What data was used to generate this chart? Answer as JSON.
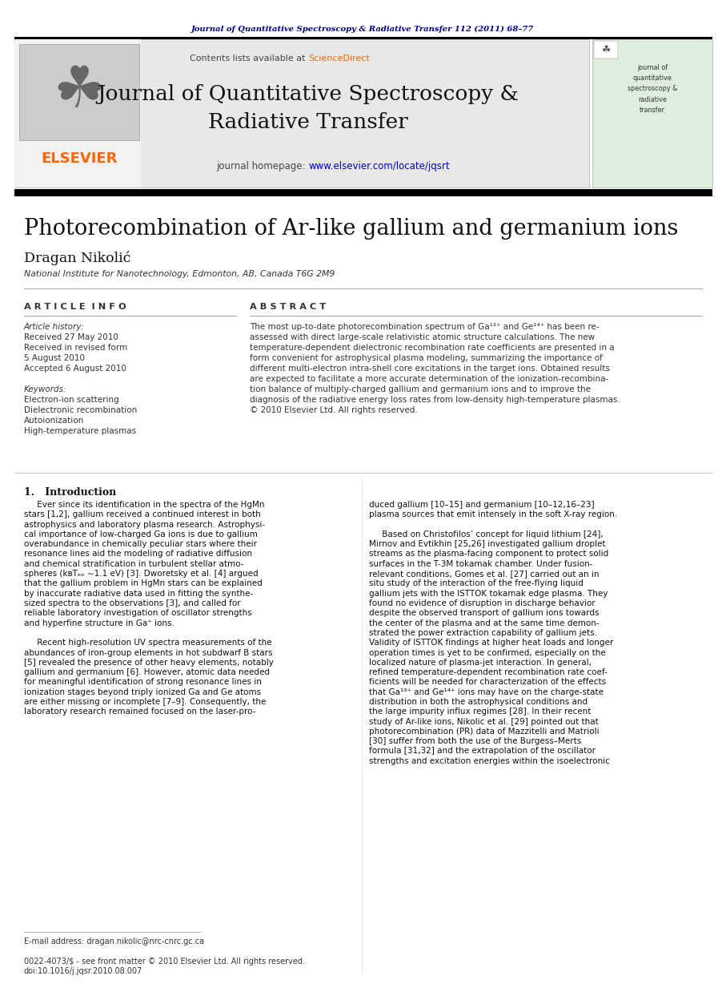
{
  "page_bg": "#ffffff",
  "top_journal_text": "Journal of Quantitative Spectroscopy & Radiative Transfer 112 (2011) 68–77",
  "top_journal_color": "#00008B",
  "header_bg": "#e8e8e8",
  "header_contents_text": "Contents lists available at ",
  "header_sciencedirect": "ScienceDirect",
  "header_sciencedirect_color": "#FF6600",
  "header_journal_title": "Journal of Quantitative Spectroscopy &\nRadiative Transfer",
  "header_homepage_prefix": "journal homepage: ",
  "header_homepage_url": "www.elsevier.com/locate/jqsrt",
  "header_homepage_url_color": "#0000CC",
  "elsevier_text": "ELSEVIER",
  "elsevier_color": "#FF6600",
  "divider_color": "#000000",
  "article_title": "Photorecombination of Ar-like gallium and germanium ions",
  "author_name": "Dragan Nikolić",
  "affiliation": "National Institute for Nanotechnology, Edmonton, AB, Canada T6G 2M9",
  "article_info_header": "A R T I C L E  I N F O",
  "abstract_header": "A B S T R A C T",
  "article_history_label": "Article history:",
  "received_date": "Received 27 May 2010",
  "revised_label": "Received in revised form",
  "revised_date": "5 August 2010",
  "accepted_label": "Accepted 6 August 2010",
  "keywords_label": "Keywords:",
  "keyword1": "Electron-ion scattering",
  "keyword2": "Dielectronic recombination",
  "keyword3": "Autoionization",
  "keyword4": "High-temperature plasmas",
  "abstract_lines": [
    "The most up-to-date photorecombination spectrum of Ga¹³⁺ and Ge¹⁴⁺ has been re-",
    "assessed with direct large-scale relativistic atomic structure calculations. The new",
    "temperature-dependent dielectronic recombination rate coefficients are presented in a",
    "form convenient for astrophysical plasma modeling, summarizing the importance of",
    "different multi-electron intra-shell core excitations in the target ions. Obtained results",
    "are expected to facilitate a more accurate determination of the ionization-recombina-",
    "tion balance of multiply-charged gallium and germanium ions and to improve the",
    "diagnosis of the radiative energy loss rates from low-density high-temperature plasmas.",
    "© 2010 Elsevier Ltd. All rights reserved."
  ],
  "intro_header": "1.   Introduction",
  "intro_col1_lines": [
    "     Ever since its identification in the spectra of the HgMn",
    "stars [1,2], gallium received a continued interest in both",
    "astrophysics and laboratory plasma research. Astrophysi-",
    "cal importance of low-charged Ga ions is due to gallium",
    "overabundance in chemically peculiar stars where their",
    "resonance lines aid the modeling of radiative diffusion",
    "and chemical stratification in turbulent stellar atmo-",
    "spheres (kʙTₑₑ ∼1.1 eV) [3]. Dworetsky et al. [4] argued",
    "that the gallium problem in HgMn stars can be explained",
    "by inaccurate radiative data used in fitting the synthe-",
    "sized spectra to the observations [3], and called for",
    "reliable laboratory investigation of oscillator strengths",
    "and hyperfine structure in Ga⁺ ions.",
    "",
    "     Recent high-resolution UV spectra measurements of the",
    "abundances of iron-group elements in hot subdwarf B stars",
    "[5] revealed the presence of other heavy elements, notably",
    "gallium and germanium [6]. However, atomic data needed",
    "for meaningful identification of strong resonance lines in",
    "ionization stages beyond triply ionized Ga and Ge atoms",
    "are either missing or incomplete [7–9]. Consequently, the",
    "laboratory research remained focused on the laser-pro-"
  ],
  "intro_col2_lines": [
    "duced gallium [10–15] and germanium [10–12,16–23]",
    "plasma sources that emit intensely in the soft X-ray region.",
    "",
    "     Based on Christofilos’ concept for liquid lithium [24],",
    "Mirnov and Evtikhin [25,26] investigated gallium droplet",
    "streams as the plasma-facing component to protect solid",
    "surfaces in the T-3M tokamak chamber. Under fusion-",
    "relevant conditions, Gomes et al. [27] carried out an in",
    "situ study of the interaction of the free-flying liquid",
    "gallium jets with the ISTTOK tokamak edge plasma. They",
    "found no evidence of disruption in discharge behavior",
    "despite the observed transport of gallium ions towards",
    "the center of the plasma and at the same time demon-",
    "strated the power extraction capability of gallium jets.",
    "Validity of ISTTOK findings at higher heat loads and longer",
    "operation times is yet to be confirmed, especially on the",
    "localized nature of plasma-jet interaction. In general,",
    "refined temperature-dependent recombination rate coef-",
    "ficients will be needed for characterization of the effects",
    "that Ga¹³⁺ and Ge¹⁴⁺ ions may have on the charge-state",
    "distribution in both the astrophysical conditions and",
    "the large impurity influx regimes [28]. In their recent",
    "study of Ar-like ions, Nikolic et al. [29] pointed out that",
    "photorecombination (PR) data of Mazzitelli and Matrioli",
    "[30] suffer from both the use of the Burgess–Merts",
    "formula [31,32] and the extrapolation of the oscillator",
    "strengths and excitation energies within the isoelectronic"
  ],
  "footer_email": "E-mail address: dragan.nikolic@nrc-cnrc.gc.ca",
  "footer_issn": "0022-4073/$ - see front matter © 2010 Elsevier Ltd. All rights reserved.",
  "footer_doi": "doi:10.1016/j.jqsr.2010.08.007",
  "cover_small_text": "journal of\nquantitative\nspectroscopy &\nradiative\ntransfer"
}
